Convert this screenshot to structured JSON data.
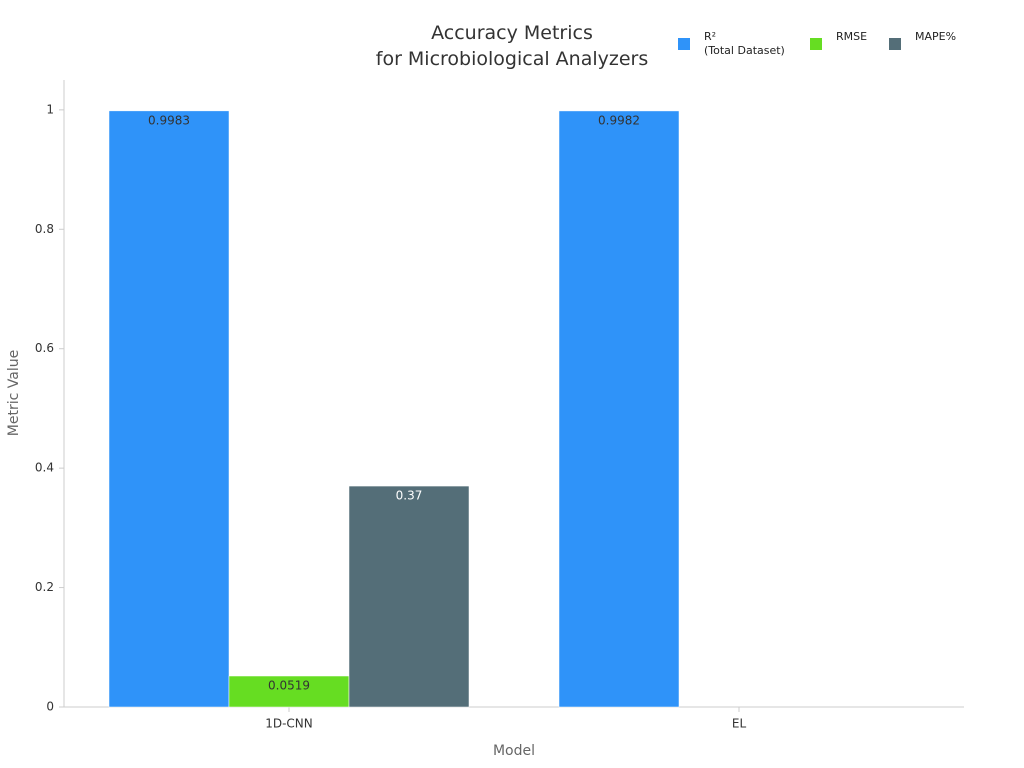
{
  "chart_data": {
    "type": "bar",
    "title": "Accuracy Metrics\nfor Microbiological Analyzers",
    "x_label": "Model",
    "y_label": "Metric Value",
    "categories": [
      "1D-CNN",
      "EL"
    ],
    "series": [
      {
        "name": "R²\n(Total Dataset)",
        "color": "#2f93f9",
        "values": [
          0.9983,
          0.9982
        ]
      },
      {
        "name": "RMSE",
        "color": "#66dd22",
        "values": [
          0.0519,
          null
        ]
      },
      {
        "name": "MAPE%",
        "color": "#546e78",
        "values": [
          0.37,
          null
        ]
      }
    ],
    "ylim": [
      0,
      1.05
    ],
    "yticks": [
      0,
      0.2,
      0.4,
      0.6,
      0.8,
      1
    ],
    "grid": false,
    "legend": "top-right"
  }
}
